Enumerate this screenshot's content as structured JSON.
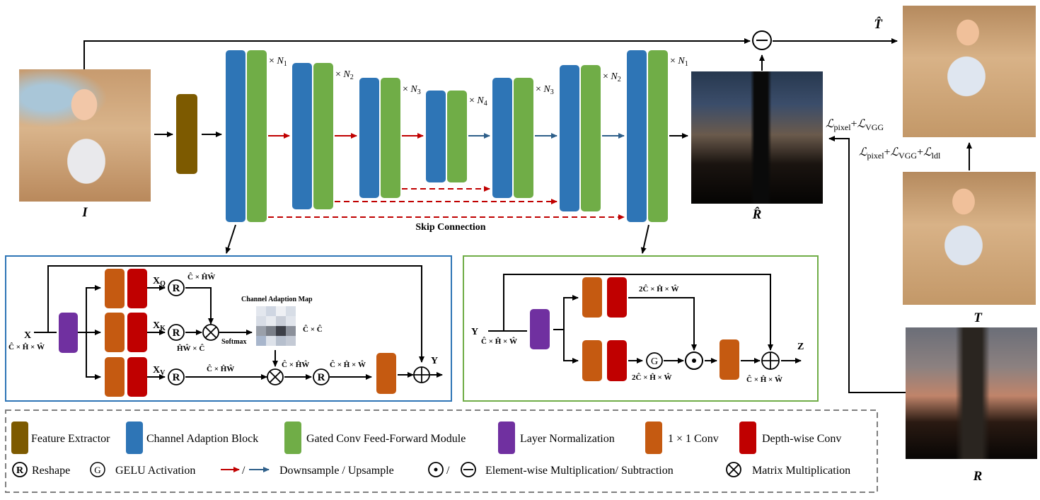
{
  "images": {
    "input": "I",
    "output_T_hat": "T̂",
    "output_R_hat": "R̂",
    "target_T": "T",
    "target_R": "R"
  },
  "multipliers": {
    "n1": "N",
    "n1_sub": "1",
    "n2_sub": "2",
    "n3_sub": "3",
    "n4_sub": "4",
    "times": "×"
  },
  "skip_connection": "Skip Connection",
  "losses": {
    "l_pixel": "ℒ",
    "pixel_sub": "pixel",
    "vgg_sub": "VGG",
    "ldl_sub": "ldl",
    "plus": "+"
  },
  "cab_detail": {
    "input_label": "X",
    "input_dim": "Ĉ × Ĥ × Ŵ",
    "xq": "X",
    "xq_sub": "Q",
    "xk": "X",
    "xk_sub": "K",
    "xv": "X",
    "xv_sub": "V",
    "q_dim": "Ĉ × ĤŴ",
    "k_dim": "ĤŴ × Ĉ",
    "v_dim": "Ĉ × ĤŴ",
    "map_title": "Channel Adaption Map",
    "map_dim": "Ĉ × Ĉ",
    "softmax": "Softmax",
    "mm_dim": "Ĉ × ĤŴ",
    "reshape_dim": "Ĉ × Ĥ × Ŵ",
    "output_label": "Y"
  },
  "gcff_detail": {
    "input_label": "Y",
    "input_dim": "Ĉ × Ĥ × Ŵ",
    "top_dim": "2Ĉ × Ĥ × Ŵ",
    "bottom_dim": "2Ĉ × Ĥ × Ŵ",
    "output_dim": "Ĉ × Ĥ × Ŵ",
    "output_label": "Z"
  },
  "legend": {
    "feature_extractor": "Feature Extractor",
    "channel_adaption_block": "Channel Adaption Block",
    "gated_conv": "Gated Conv Feed-Forward Module",
    "layer_norm": "Layer Normalization",
    "conv1x1": "1 × 1 Conv",
    "depthwise": "Depth-wise Conv",
    "reshape": "Reshape",
    "gelu": "GELU Activation",
    "down_up": "Downsample / Upsample",
    "elementwise": "Element-wise Multiplication/ Subtraction",
    "matmul": "Matrix Multiplication",
    "slash": "/"
  },
  "symbols": {
    "R": "R",
    "G": "G"
  },
  "colors": {
    "feature_extractor": "#7d5a00",
    "cab_blue": "#2e75b6",
    "gcff_green": "#70ad47",
    "layernorm_purple": "#7030a0",
    "conv_orange": "#c55a11",
    "depthwise_red": "#c00000",
    "down_arrow": "#c00000",
    "up_arrow": "#2e5f8a",
    "cab_box_border": "#2e75b6",
    "gcff_box_border": "#70ad47",
    "legend_border": "#7f7f7f"
  }
}
